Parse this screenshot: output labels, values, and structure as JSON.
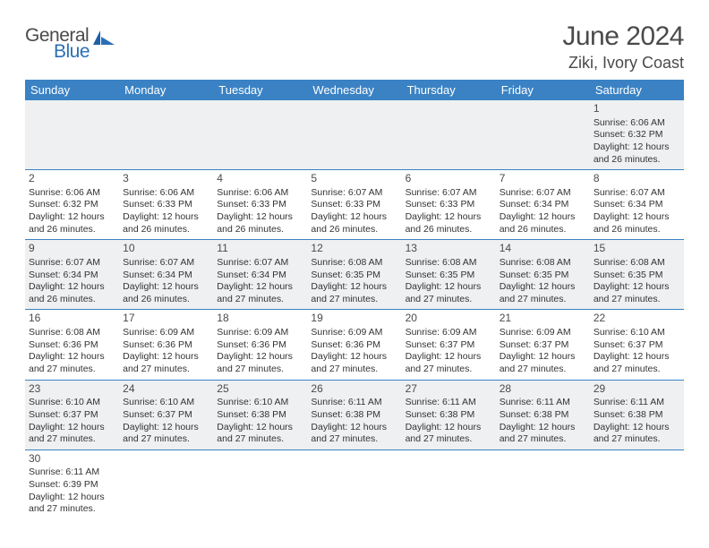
{
  "logo": {
    "general": "General",
    "blue": "Blue"
  },
  "title": "June 2024",
  "location": "Ziki, Ivory Coast",
  "colors": {
    "header_bg": "#3a82c4",
    "header_text": "#ffffff",
    "row_alt_bg": "#eef0f1",
    "row_bg": "#ffffff",
    "border": "#3a82c4",
    "text": "#333333",
    "title_text": "#4a4a4a",
    "logo_blue": "#2a6fb5"
  },
  "weekdays": [
    "Sunday",
    "Monday",
    "Tuesday",
    "Wednesday",
    "Thursday",
    "Friday",
    "Saturday"
  ],
  "weeks": [
    [
      null,
      null,
      null,
      null,
      null,
      null,
      {
        "n": "1",
        "sunrise": "6:06 AM",
        "sunset": "6:32 PM",
        "dl": "12 hours and 26 minutes."
      }
    ],
    [
      {
        "n": "2",
        "sunrise": "6:06 AM",
        "sunset": "6:32 PM",
        "dl": "12 hours and 26 minutes."
      },
      {
        "n": "3",
        "sunrise": "6:06 AM",
        "sunset": "6:33 PM",
        "dl": "12 hours and 26 minutes."
      },
      {
        "n": "4",
        "sunrise": "6:06 AM",
        "sunset": "6:33 PM",
        "dl": "12 hours and 26 minutes."
      },
      {
        "n": "5",
        "sunrise": "6:07 AM",
        "sunset": "6:33 PM",
        "dl": "12 hours and 26 minutes."
      },
      {
        "n": "6",
        "sunrise": "6:07 AM",
        "sunset": "6:33 PM",
        "dl": "12 hours and 26 minutes."
      },
      {
        "n": "7",
        "sunrise": "6:07 AM",
        "sunset": "6:34 PM",
        "dl": "12 hours and 26 minutes."
      },
      {
        "n": "8",
        "sunrise": "6:07 AM",
        "sunset": "6:34 PM",
        "dl": "12 hours and 26 minutes."
      }
    ],
    [
      {
        "n": "9",
        "sunrise": "6:07 AM",
        "sunset": "6:34 PM",
        "dl": "12 hours and 26 minutes."
      },
      {
        "n": "10",
        "sunrise": "6:07 AM",
        "sunset": "6:34 PM",
        "dl": "12 hours and 26 minutes."
      },
      {
        "n": "11",
        "sunrise": "6:07 AM",
        "sunset": "6:34 PM",
        "dl": "12 hours and 27 minutes."
      },
      {
        "n": "12",
        "sunrise": "6:08 AM",
        "sunset": "6:35 PM",
        "dl": "12 hours and 27 minutes."
      },
      {
        "n": "13",
        "sunrise": "6:08 AM",
        "sunset": "6:35 PM",
        "dl": "12 hours and 27 minutes."
      },
      {
        "n": "14",
        "sunrise": "6:08 AM",
        "sunset": "6:35 PM",
        "dl": "12 hours and 27 minutes."
      },
      {
        "n": "15",
        "sunrise": "6:08 AM",
        "sunset": "6:35 PM",
        "dl": "12 hours and 27 minutes."
      }
    ],
    [
      {
        "n": "16",
        "sunrise": "6:08 AM",
        "sunset": "6:36 PM",
        "dl": "12 hours and 27 minutes."
      },
      {
        "n": "17",
        "sunrise": "6:09 AM",
        "sunset": "6:36 PM",
        "dl": "12 hours and 27 minutes."
      },
      {
        "n": "18",
        "sunrise": "6:09 AM",
        "sunset": "6:36 PM",
        "dl": "12 hours and 27 minutes."
      },
      {
        "n": "19",
        "sunrise": "6:09 AM",
        "sunset": "6:36 PM",
        "dl": "12 hours and 27 minutes."
      },
      {
        "n": "20",
        "sunrise": "6:09 AM",
        "sunset": "6:37 PM",
        "dl": "12 hours and 27 minutes."
      },
      {
        "n": "21",
        "sunrise": "6:09 AM",
        "sunset": "6:37 PM",
        "dl": "12 hours and 27 minutes."
      },
      {
        "n": "22",
        "sunrise": "6:10 AM",
        "sunset": "6:37 PM",
        "dl": "12 hours and 27 minutes."
      }
    ],
    [
      {
        "n": "23",
        "sunrise": "6:10 AM",
        "sunset": "6:37 PM",
        "dl": "12 hours and 27 minutes."
      },
      {
        "n": "24",
        "sunrise": "6:10 AM",
        "sunset": "6:37 PM",
        "dl": "12 hours and 27 minutes."
      },
      {
        "n": "25",
        "sunrise": "6:10 AM",
        "sunset": "6:38 PM",
        "dl": "12 hours and 27 minutes."
      },
      {
        "n": "26",
        "sunrise": "6:11 AM",
        "sunset": "6:38 PM",
        "dl": "12 hours and 27 minutes."
      },
      {
        "n": "27",
        "sunrise": "6:11 AM",
        "sunset": "6:38 PM",
        "dl": "12 hours and 27 minutes."
      },
      {
        "n": "28",
        "sunrise": "6:11 AM",
        "sunset": "6:38 PM",
        "dl": "12 hours and 27 minutes."
      },
      {
        "n": "29",
        "sunrise": "6:11 AM",
        "sunset": "6:38 PM",
        "dl": "12 hours and 27 minutes."
      }
    ],
    [
      {
        "n": "30",
        "sunrise": "6:11 AM",
        "sunset": "6:39 PM",
        "dl": "12 hours and 27 minutes."
      },
      null,
      null,
      null,
      null,
      null,
      null
    ]
  ],
  "labels": {
    "sunrise": "Sunrise:",
    "sunset": "Sunset:",
    "daylight": "Daylight:"
  }
}
